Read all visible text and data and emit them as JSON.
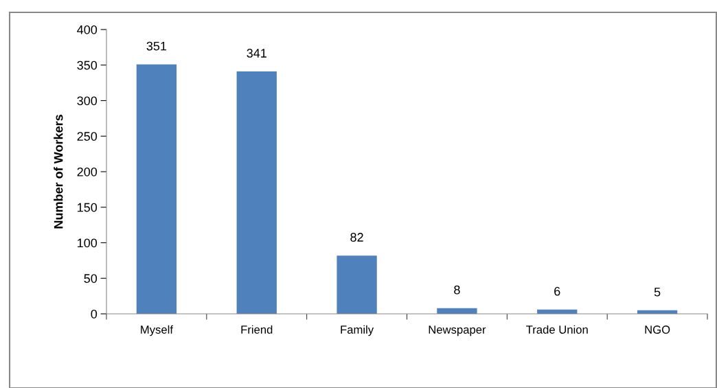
{
  "chart_data": {
    "type": "bar",
    "ylabel": "Number of Workers",
    "categories": [
      "Myself",
      "Friend",
      "Family",
      "Newspaper",
      "Trade Union",
      "NGO"
    ],
    "values": [
      351,
      341,
      82,
      8,
      6,
      5
    ],
    "color": "#4f81bd",
    "ylim": [
      0,
      400
    ],
    "yticks": [
      0,
      50,
      100,
      150,
      200,
      250,
      300,
      350,
      400
    ],
    "data_labels": true,
    "grid": false,
    "legend": false
  }
}
